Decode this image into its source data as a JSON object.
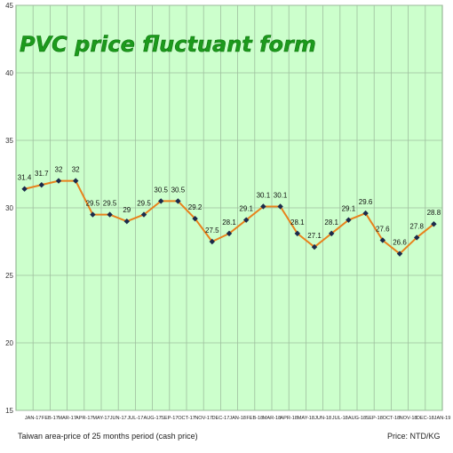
{
  "chart_data": {
    "type": "line",
    "title": "PVC price fluctuant form",
    "categories": [
      "JAN-17",
      "FEB-17",
      "MAR-17",
      "APR-17",
      "MAY-17",
      "JUN-17",
      "JUL-17",
      "AUG-17",
      "SEP-17",
      "OCT-17",
      "NOV-17",
      "DEC-17",
      "JAN-18",
      "FEB-18",
      "MAR-18",
      "APR-18",
      "MAY-18",
      "JUN-18",
      "JUL-18",
      "AUG-18",
      "SEP-18",
      "OCT-18",
      "NOV-18",
      "DEC-18",
      "JAN-19"
    ],
    "values": [
      31.4,
      31.7,
      32,
      32,
      29.5,
      29.5,
      29,
      29.5,
      30.5,
      30.5,
      29.2,
      27.5,
      28.1,
      29.1,
      30.1,
      30.1,
      28.1,
      27.1,
      28.1,
      29.1,
      29.6,
      27.6,
      26.6,
      27.8,
      28.8
    ],
    "point_labels": [
      "31.4",
      "31.7",
      "32",
      "32",
      "29.5",
      "29.5",
      "29",
      "29.5",
      "30.5",
      "30.5",
      "29.2",
      "27.5",
      "28.1",
      "29.1",
      "30.1",
      "30.1",
      "28.1",
      "27.1",
      "28.1",
      "29.1",
      "29.6",
      "27.6",
      "26.6",
      "27.8",
      "28.8"
    ],
    "ylim": [
      15,
      45
    ],
    "yticks": [
      15,
      20,
      25,
      30,
      35,
      40,
      45
    ],
    "grid": true,
    "legend": "none",
    "xlabel": "",
    "ylabel": "",
    "colors": {
      "plot_bg": "#ccffcc",
      "grid": "#9fbf9f",
      "line": "#e8821c",
      "marker": "#1c2a4a",
      "title": "#1c9a1c"
    }
  },
  "footer": {
    "left": "Taiwan area-price of 25 months period (cash price)",
    "right": "Price: NTD/KG"
  }
}
